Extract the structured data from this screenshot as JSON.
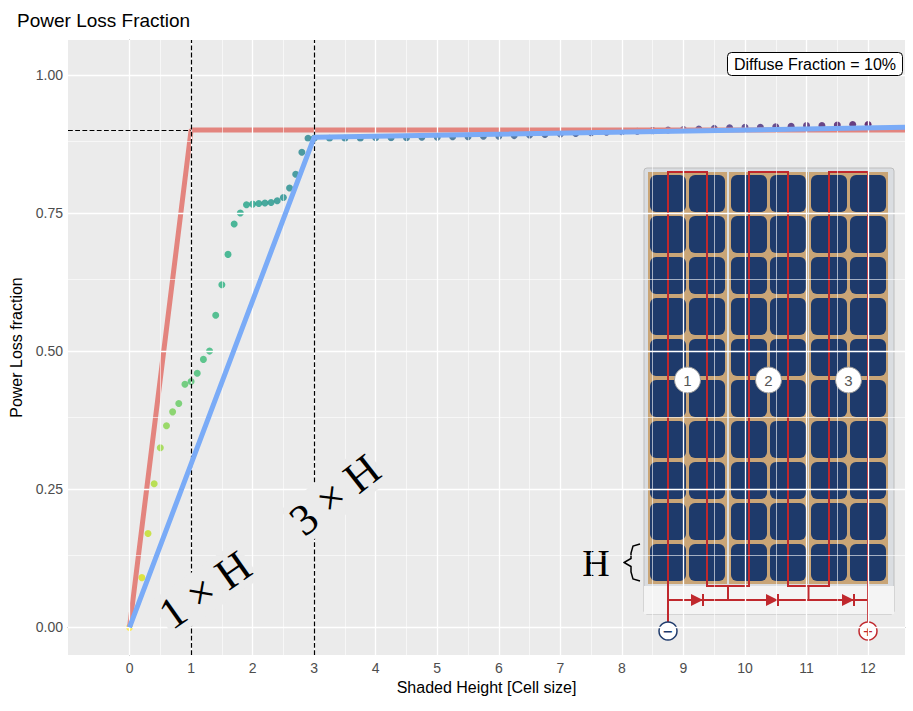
{
  "chart_data": {
    "type": "line",
    "title": "Power Loss Fraction",
    "x_label": "Shaded Height [Cell size]",
    "y_label": "Power Loss fraction",
    "xlim": [
      -1,
      12.6
    ],
    "xticks": [
      0,
      1,
      2,
      3,
      4,
      5,
      6,
      7,
      8,
      9,
      10,
      11,
      12
    ],
    "ylim": [
      -0.05,
      1.063
    ],
    "yticks": [
      {
        "value": 0,
        "label": "0.00"
      },
      {
        "value": 0.25,
        "label": "0.25"
      },
      {
        "value": 0.5,
        "label": "0.50"
      },
      {
        "value": 0.75,
        "label": "0.75"
      },
      {
        "value": 1,
        "label": "1.00"
      }
    ],
    "grid": true,
    "series": [
      {
        "type": "scatter",
        "marker": "circle",
        "x": [
          0,
          0.2,
          0.3,
          0.4,
          0.5,
          0.6,
          0.7,
          0.8,
          0.9,
          1.0,
          1.1,
          1.2,
          1.3,
          1.4,
          1.5,
          1.6,
          1.7,
          1.8,
          1.9,
          2.0,
          2.1,
          2.2,
          2.3,
          2.4,
          2.5,
          2.6,
          2.7,
          2.8,
          2.9,
          3.0,
          3.25,
          3.5,
          3.75,
          4,
          4.25,
          4.5,
          4.75,
          5,
          5.25,
          5.5,
          5.75,
          6,
          6.25,
          6.5,
          6.75,
          7,
          7.25,
          7.5,
          7.75,
          8,
          8.25,
          8.5,
          8.75,
          9,
          9.25,
          9.5,
          9.75,
          10,
          10.25,
          10.5,
          10.75,
          11,
          11.25,
          11.5,
          11.75,
          12
        ],
        "values": [
          0,
          0.09,
          0.17,
          0.26,
          0.325,
          0.365,
          0.39,
          0.405,
          0.44,
          0.445,
          0.46,
          0.485,
          0.5,
          0.565,
          0.62,
          0.675,
          0.73,
          0.75,
          0.765,
          0.766,
          0.767,
          0.768,
          0.769,
          0.772,
          0.778,
          0.795,
          0.82,
          0.86,
          0.885,
          0.885,
          0.885,
          0.885,
          0.885,
          0.886,
          0.886,
          0.886,
          0.887,
          0.887,
          0.888,
          0.888,
          0.889,
          0.889,
          0.89,
          0.891,
          0.892,
          0.893,
          0.894,
          0.895,
          0.896,
          0.897,
          0.898,
          0.899,
          0.9,
          0.901,
          0.902,
          0.903,
          0.904,
          0.905,
          0.905,
          0.906,
          0.907,
          0.908,
          0.908,
          0.909,
          0.91,
          0.91
        ],
        "colors": [
          "#FDE725",
          "#D8E219",
          "#C2DF23",
          "#ADDC30",
          "#98D83E",
          "#86D549",
          "#75D054",
          "#63CB5F",
          "#56C667",
          "#4AC16D",
          "#40BD72",
          "#3BBB75",
          "#35B779",
          "#2FB47C",
          "#2AB07F",
          "#26AD81",
          "#23A983",
          "#21A685",
          "#20A386",
          "#1FA088",
          "#1F9D8A",
          "#1F998A",
          "#1F968B",
          "#20928C",
          "#218F8D",
          "#228C8D",
          "#23898E",
          "#24868E",
          "#25838E",
          "#26818E",
          "#277F8E",
          "#287C8E",
          "#29798E",
          "#2A768E",
          "#2B748E",
          "#2C718E",
          "#2D6E8E",
          "#2E6B8E",
          "#2F688E",
          "#31668E",
          "#32638E",
          "#33608D",
          "#355D8D",
          "#365A8D",
          "#38588C",
          "#39558C",
          "#3B528B",
          "#3C4F8A",
          "#3E4C8A",
          "#3F4989",
          "#404688",
          "#424186",
          "#433E85",
          "#443B84",
          "#453882",
          "#463480",
          "#46317E",
          "#472D7B",
          "#472A7A",
          "#482677",
          "#482374",
          "#481F70",
          "#481B6D",
          "#481769",
          "#471365",
          "#440154"
        ]
      },
      {
        "type": "line",
        "line_style": "solid",
        "color": "#E3847E",
        "x": [
          0,
          1,
          12.6
        ],
        "values": [
          0,
          0.9,
          0.9
        ]
      },
      {
        "type": "line",
        "line_style": "solid",
        "color": "#7AABF7",
        "x": [
          0,
          3,
          12.6
        ],
        "values": [
          0,
          0.887,
          0.905
        ]
      }
    ],
    "vlines": [
      1,
      3
    ],
    "hlines": [
      {
        "y": 0.9,
        "x_end": 1
      }
    ],
    "annotations": [
      {
        "text": "Diffuse Fraction = 10%"
      },
      {
        "text": "1 × H"
      },
      {
        "text": "3 × H"
      }
    ],
    "inset": {
      "string_labels": [
        "1",
        "2",
        "3"
      ],
      "height_label": "H",
      "terminals": [
        "−",
        "+"
      ]
    }
  }
}
